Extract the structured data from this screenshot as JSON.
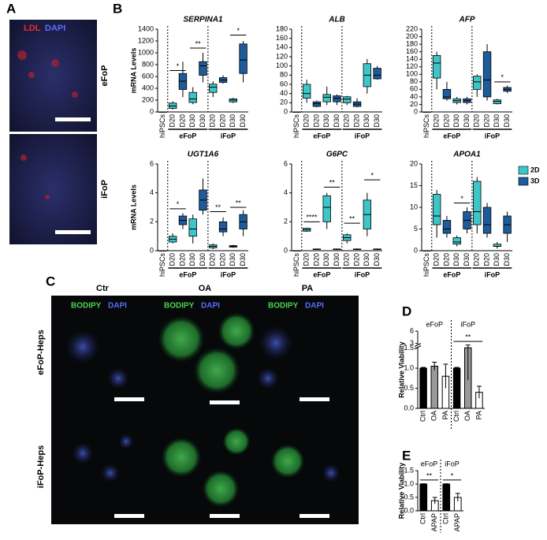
{
  "panels": {
    "a": "A",
    "b": "B",
    "c": "C",
    "d": "D",
    "e": "E"
  },
  "panel_a": {
    "stains": [
      "LDL",
      "DAPI"
    ],
    "rows": [
      "eFoP",
      "iFoP"
    ]
  },
  "panel_c": {
    "columns": [
      "Ctr",
      "OA",
      "PA"
    ],
    "stains": [
      "BODIPY",
      "DAPI"
    ],
    "rows": [
      "eFoP-Heps",
      "iFoP-Heps"
    ]
  },
  "chart_data": [
    {
      "type": "box",
      "title": "SERPINA1",
      "ylabel": "mRNA Levels",
      "categories": [
        "hiPSCs",
        "D20",
        "D20",
        "D30",
        "D30",
        "D20",
        "D20",
        "D30",
        "D30"
      ],
      "groups": [
        {
          "label": "eFoP",
          "from": 1,
          "to": 4
        },
        {
          "label": "iFoP",
          "from": 5,
          "to": 8
        }
      ],
      "ylim": [
        0,
        1400
      ],
      "yticks": [
        0,
        200,
        400,
        600,
        800,
        1000,
        1200,
        1400
      ],
      "series": [
        {
          "color": "#3ec5c8",
          "values": [
            [
              0,
              0,
              0,
              0,
              0
            ],
            [
              40,
              60,
              100,
              150,
              180
            ],
            null,
            [
              130,
              160,
              220,
              330,
              420
            ],
            null,
            [
              250,
              330,
              420,
              470,
              520
            ],
            null,
            [
              150,
              170,
              200,
              220,
              240
            ],
            null
          ]
        },
        {
          "color": "#1e5b9a",
          "values": [
            null,
            null,
            [
              250,
              380,
              520,
              650,
              850
            ],
            null,
            [
              500,
              620,
              780,
              850,
              1000
            ],
            null,
            [
              480,
              500,
              540,
              580,
              620
            ],
            null,
            [
              500,
              650,
              880,
              1150,
              1200
            ]
          ]
        }
      ],
      "annotations": [
        {
          "text": "*",
          "from": 1,
          "to": 2,
          "y": 700
        },
        {
          "text": "**",
          "from": 3,
          "to": 4,
          "y": 1080
        },
        {
          "text": "*",
          "from": 7,
          "to": 8,
          "y": 1300
        }
      ]
    },
    {
      "type": "box",
      "title": "ALB",
      "categories": [
        "hiPSCs",
        "D20",
        "D20",
        "D30",
        "D30",
        "D20",
        "D20",
        "D30",
        "D30"
      ],
      "groups": [
        {
          "label": "eFoP",
          "from": 1,
          "to": 4
        },
        {
          "label": "iFoP",
          "from": 5,
          "to": 8
        }
      ],
      "ylim": [
        0,
        180
      ],
      "yticks": [
        0,
        20,
        40,
        60,
        80,
        100,
        120,
        140,
        160,
        180
      ],
      "series": [
        {
          "color": "#3ec5c8",
          "values": [
            [
              0,
              0,
              0,
              0,
              0
            ],
            [
              20,
              30,
              40,
              60,
              70
            ],
            null,
            [
              15,
              22,
              32,
              38,
              55
            ],
            null,
            [
              15,
              20,
              28,
              33,
              35
            ],
            null,
            [
              40,
              55,
              80,
              105,
              115
            ],
            null
          ]
        },
        {
          "color": "#1e5b9a",
          "values": [
            null,
            null,
            [
              10,
              12,
              18,
              22,
              25
            ],
            null,
            [
              15,
              22,
              30,
              35,
              38
            ],
            null,
            [
              10,
              12,
              17,
              22,
              30
            ],
            null,
            [
              70,
              72,
              80,
              95,
              100
            ]
          ]
        }
      ],
      "annotations": []
    },
    {
      "type": "box",
      "title": "AFP",
      "categories": [
        "hiPSCs",
        "D20",
        "D20",
        "D30",
        "D30",
        "D20",
        "D20",
        "D30",
        "D30"
      ],
      "groups": [
        {
          "label": "eFoP",
          "from": 1,
          "to": 4
        },
        {
          "label": "iFoP",
          "from": 5,
          "to": 8
        }
      ],
      "ylim": [
        0,
        220
      ],
      "yticks": [
        0,
        20,
        40,
        60,
        80,
        100,
        120,
        140,
        160,
        180,
        200,
        220
      ],
      "series": [
        {
          "color": "#3ec5c8",
          "values": [
            [
              0,
              0,
              0,
              0,
              0
            ],
            [
              60,
              90,
              130,
              150,
              160
            ],
            null,
            [
              20,
              25,
              30,
              35,
              40
            ],
            null,
            [
              40,
              60,
              80,
              95,
              100
            ],
            null,
            [
              20,
              22,
              28,
              32,
              35
            ],
            null
          ]
        },
        {
          "color": "#1e5b9a",
          "values": [
            null,
            null,
            [
              30,
              35,
              40,
              60,
              80
            ],
            null,
            [
              20,
              25,
              30,
              35,
              40
            ],
            null,
            [
              30,
              40,
              85,
              160,
              180
            ],
            null,
            [
              50,
              55,
              60,
              65,
              70
            ]
          ]
        }
      ],
      "annotations": [
        {
          "text": "*",
          "from": 7,
          "to": 8,
          "y": 80
        }
      ]
    },
    {
      "type": "box",
      "title": "UGT1A6",
      "ylabel": "mRNA Levels",
      "categories": [
        "hiPSCs",
        "D20",
        "D20",
        "D30",
        "D30",
        "D20",
        "D20",
        "D30",
        "D30"
      ],
      "groups": [
        {
          "label": "eFoP",
          "from": 1,
          "to": 4
        },
        {
          "label": "iFoP",
          "from": 5,
          "to": 8
        }
      ],
      "ylim": [
        0,
        6
      ],
      "yticks": [
        0,
        2,
        4,
        6
      ],
      "series": [
        {
          "color": "#3ec5c8",
          "values": [
            [
              0,
              0,
              0,
              0,
              0
            ],
            [
              0.5,
              0.6,
              0.8,
              1.0,
              1.2
            ],
            null,
            [
              0.5,
              1,
              1.5,
              2.2,
              2.5
            ],
            null,
            [
              0.1,
              0.2,
              0.3,
              0.4,
              0.5
            ],
            null,
            [
              0.2,
              0.25,
              0.3,
              0.35,
              0.4
            ],
            null
          ]
        },
        {
          "color": "#1e5b9a",
          "values": [
            null,
            null,
            [
              1.5,
              1.8,
              2.1,
              2.4,
              2.6
            ],
            null,
            [
              2.5,
              2.8,
              3.5,
              4.2,
              5
            ],
            null,
            [
              1,
              1.3,
              1.5,
              2,
              2.3
            ],
            null,
            [
              1,
              1.5,
              2,
              2.5,
              2.8
            ]
          ]
        }
      ],
      "annotations": [
        {
          "text": "*",
          "from": 1,
          "to": 2,
          "y": 2.9
        },
        {
          "text": "**",
          "from": 5,
          "to": 6,
          "y": 2.7
        },
        {
          "text": "**",
          "from": 7,
          "to": 8,
          "y": 3
        }
      ]
    },
    {
      "type": "box",
      "title": "G6PC",
      "categories": [
        "hiPSCs",
        "D20",
        "D20",
        "D30",
        "D30",
        "D20",
        "D20",
        "D30",
        "D30"
      ],
      "groups": [
        {
          "label": "eFoP",
          "from": 1,
          "to": 4
        },
        {
          "label": "iFoP",
          "from": 5,
          "to": 8
        }
      ],
      "ylim": [
        0,
        6
      ],
      "yticks": [
        0,
        2,
        4,
        6
      ],
      "series": [
        {
          "color": "#3ec5c8",
          "values": [
            [
              0,
              0,
              0,
              0,
              0
            ],
            [
              1.3,
              1.35,
              1.45,
              1.55,
              1.6
            ],
            null,
            [
              1.5,
              2,
              3,
              3.8,
              4
            ],
            null,
            [
              0.5,
              0.7,
              0.9,
              1.1,
              1.2
            ],
            null,
            [
              1,
              1.5,
              2.5,
              3.5,
              4
            ],
            null
          ]
        },
        {
          "color": "#1e5b9a",
          "values": [
            null,
            null,
            [
              0.05,
              0.08,
              0.1,
              0.12,
              0.15
            ],
            null,
            [
              0.05,
              0.08,
              0.1,
              0.12,
              0.15
            ],
            null,
            [
              0.05,
              0.08,
              0.1,
              0.12,
              0.15
            ],
            null,
            [
              0.05,
              0.08,
              0.1,
              0.12,
              0.15
            ]
          ]
        }
      ],
      "annotations": [
        {
          "text": "****",
          "from": 1,
          "to": 2,
          "y": 2
        },
        {
          "text": "**",
          "from": 3,
          "to": 4,
          "y": 4.4
        },
        {
          "text": "**",
          "from": 5,
          "to": 6,
          "y": 1.9
        },
        {
          "text": "*",
          "from": 7,
          "to": 8,
          "y": 4.9
        }
      ]
    },
    {
      "type": "box",
      "title": "APOA1",
      "legend": true,
      "categories": [
        "hiPSCs",
        "D20",
        "D20",
        "D30",
        "D30",
        "D20",
        "D20",
        "D30",
        "D30"
      ],
      "groups": [
        {
          "label": "eFoP",
          "from": 1,
          "to": 4
        },
        {
          "label": "iFoP",
          "from": 5,
          "to": 8
        }
      ],
      "ylim": [
        0,
        20
      ],
      "yticks": [
        0,
        5,
        10,
        15,
        20
      ],
      "series": [
        {
          "name": "2D",
          "color": "#3ec5c8",
          "values": [
            [
              0,
              0,
              0,
              0,
              0
            ],
            [
              3,
              6,
              8,
              13,
              14
            ],
            null,
            [
              1,
              1.5,
              2,
              3,
              3.5
            ],
            null,
            [
              4,
              6,
              9,
              16,
              17
            ],
            null,
            [
              0.5,
              1,
              1,
              1.5,
              2
            ],
            null
          ]
        },
        {
          "name": "3D",
          "color": "#1e5b9a",
          "values": [
            null,
            null,
            [
              3,
              4,
              5,
              7,
              8
            ],
            null,
            [
              4,
              5,
              7,
              9,
              10
            ],
            null,
            [
              3,
              4,
              6,
              10,
              11
            ],
            null,
            [
              2,
              4,
              6,
              8,
              9
            ]
          ]
        }
      ],
      "annotations": [
        {
          "text": "*",
          "from": 3,
          "to": 4,
          "y": 11
        }
      ]
    },
    {
      "type": "bar",
      "ylabel": "Relative Viability",
      "categories": [
        "Ctrl",
        "OA",
        "PA",
        "Ctrl",
        "OA",
        "PA"
      ],
      "groups": [
        {
          "label": "eFoP",
          "from": 0,
          "to": 2
        },
        {
          "label": "iFoP",
          "from": 3,
          "to": 5
        }
      ],
      "values": [
        1.0,
        1.05,
        0.8,
        1.0,
        1.6,
        0.4
      ],
      "errors": [
        0.02,
        0.1,
        0.3,
        0.02,
        0.9,
        0.15
      ],
      "colors": [
        "#000000",
        "#999999",
        "#ffffff",
        "#000000",
        "#999999",
        "#ffffff"
      ],
      "ylim": [
        0,
        6
      ],
      "ybreak": [
        1.5,
        3
      ],
      "yticks": [
        {
          "value": 0,
          "label": "0.0"
        },
        {
          "value": 0.5,
          "label": "0.5"
        },
        {
          "value": 1,
          "label": "1.0"
        },
        {
          "value": 1.5,
          "label": "1.5"
        },
        3,
        6
      ],
      "annotations": [
        {
          "text": "**",
          "from": 3,
          "to": 5,
          "y": 3.5
        }
      ]
    },
    {
      "type": "bar",
      "ylabel": "Relative Viability",
      "categories": [
        "Ctrl",
        "APAP",
        "Ctrl",
        "APAP"
      ],
      "groups": [
        {
          "label": "eFoP",
          "from": 0,
          "to": 1
        },
        {
          "label": "iFoP",
          "from": 2,
          "to": 3
        }
      ],
      "values": [
        1.0,
        0.38,
        1.0,
        0.5
      ],
      "errors": [
        0.01,
        0.12,
        0.01,
        0.15
      ],
      "colors": [
        "#000000",
        "#ffffff",
        "#000000",
        "#ffffff"
      ],
      "ylim": [
        0,
        1.5
      ],
      "yticks": [
        {
          "value": 0,
          "label": "0.0"
        },
        {
          "value": 0.5,
          "label": "0.5"
        },
        {
          "value": 1,
          "label": "1.0"
        },
        {
          "value": 1.5,
          "label": "1.5"
        }
      ],
      "annotations": [
        {
          "text": "**",
          "from": 0,
          "to": 1,
          "y": 1.15
        },
        {
          "text": "*",
          "from": 2,
          "to": 3,
          "y": 1.15
        }
      ]
    }
  ]
}
